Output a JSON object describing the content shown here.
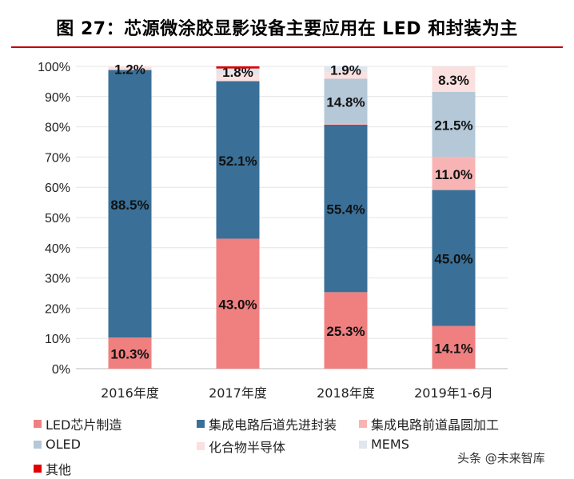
{
  "title": "图 27：芯源微涂胶显影设备主要应用在 LED 和封装为主",
  "watermark": "头条 @未来智库",
  "chart_data": {
    "type": "bar",
    "stacked": true,
    "categories": [
      "2016年度",
      "2017年度",
      "2018年度",
      "2019年1-6月"
    ],
    "ylim": [
      0,
      100
    ],
    "yticks": [
      "0%",
      "10%",
      "20%",
      "30%",
      "40%",
      "50%",
      "60%",
      "70%",
      "80%",
      "90%",
      "100%"
    ],
    "grid": true,
    "legend_position": "bottom",
    "series": [
      {
        "name": "LED芯片制造",
        "color": "#f08080",
        "values": [
          10.3,
          43.0,
          25.3,
          14.1
        ],
        "labels": [
          "10.3%",
          "43.0%",
          "25.3%",
          "14.1%"
        ]
      },
      {
        "name": "集成电路后道先进封装",
        "color": "#3a7098",
        "values": [
          88.5,
          52.1,
          55.4,
          45.0
        ],
        "labels": [
          "88.5%",
          "52.1%",
          "55.4%",
          "45.0%"
        ]
      },
      {
        "name": "集成电路前道晶圆加工",
        "color": "#f8b4b4",
        "values": [
          0,
          0,
          0.4,
          11.0
        ],
        "labels": [
          "",
          "",
          "",
          "11.0%"
        ]
      },
      {
        "name": "OLED",
        "color": "#b4c8d8",
        "values": [
          0,
          0,
          14.8,
          21.5
        ],
        "labels": [
          "",
          "",
          "14.8%",
          "21.5%"
        ]
      },
      {
        "name": "化合物半导体",
        "color": "#fbe0e0",
        "values": [
          1.2,
          2.4,
          2.2,
          8.3
        ],
        "labels": [
          "1.2%",
          "",
          "",
          "8.3%"
        ]
      },
      {
        "name": "MEMS",
        "color": "#e0e6ee",
        "values": [
          0,
          1.8,
          1.9,
          0
        ],
        "labels": [
          "",
          "1.8%",
          "1.9%",
          ""
        ]
      },
      {
        "name": "其他",
        "color": "#e00000",
        "values": [
          0,
          0.7,
          0,
          0
        ],
        "labels": [
          "",
          "",
          "",
          ""
        ]
      }
    ]
  }
}
